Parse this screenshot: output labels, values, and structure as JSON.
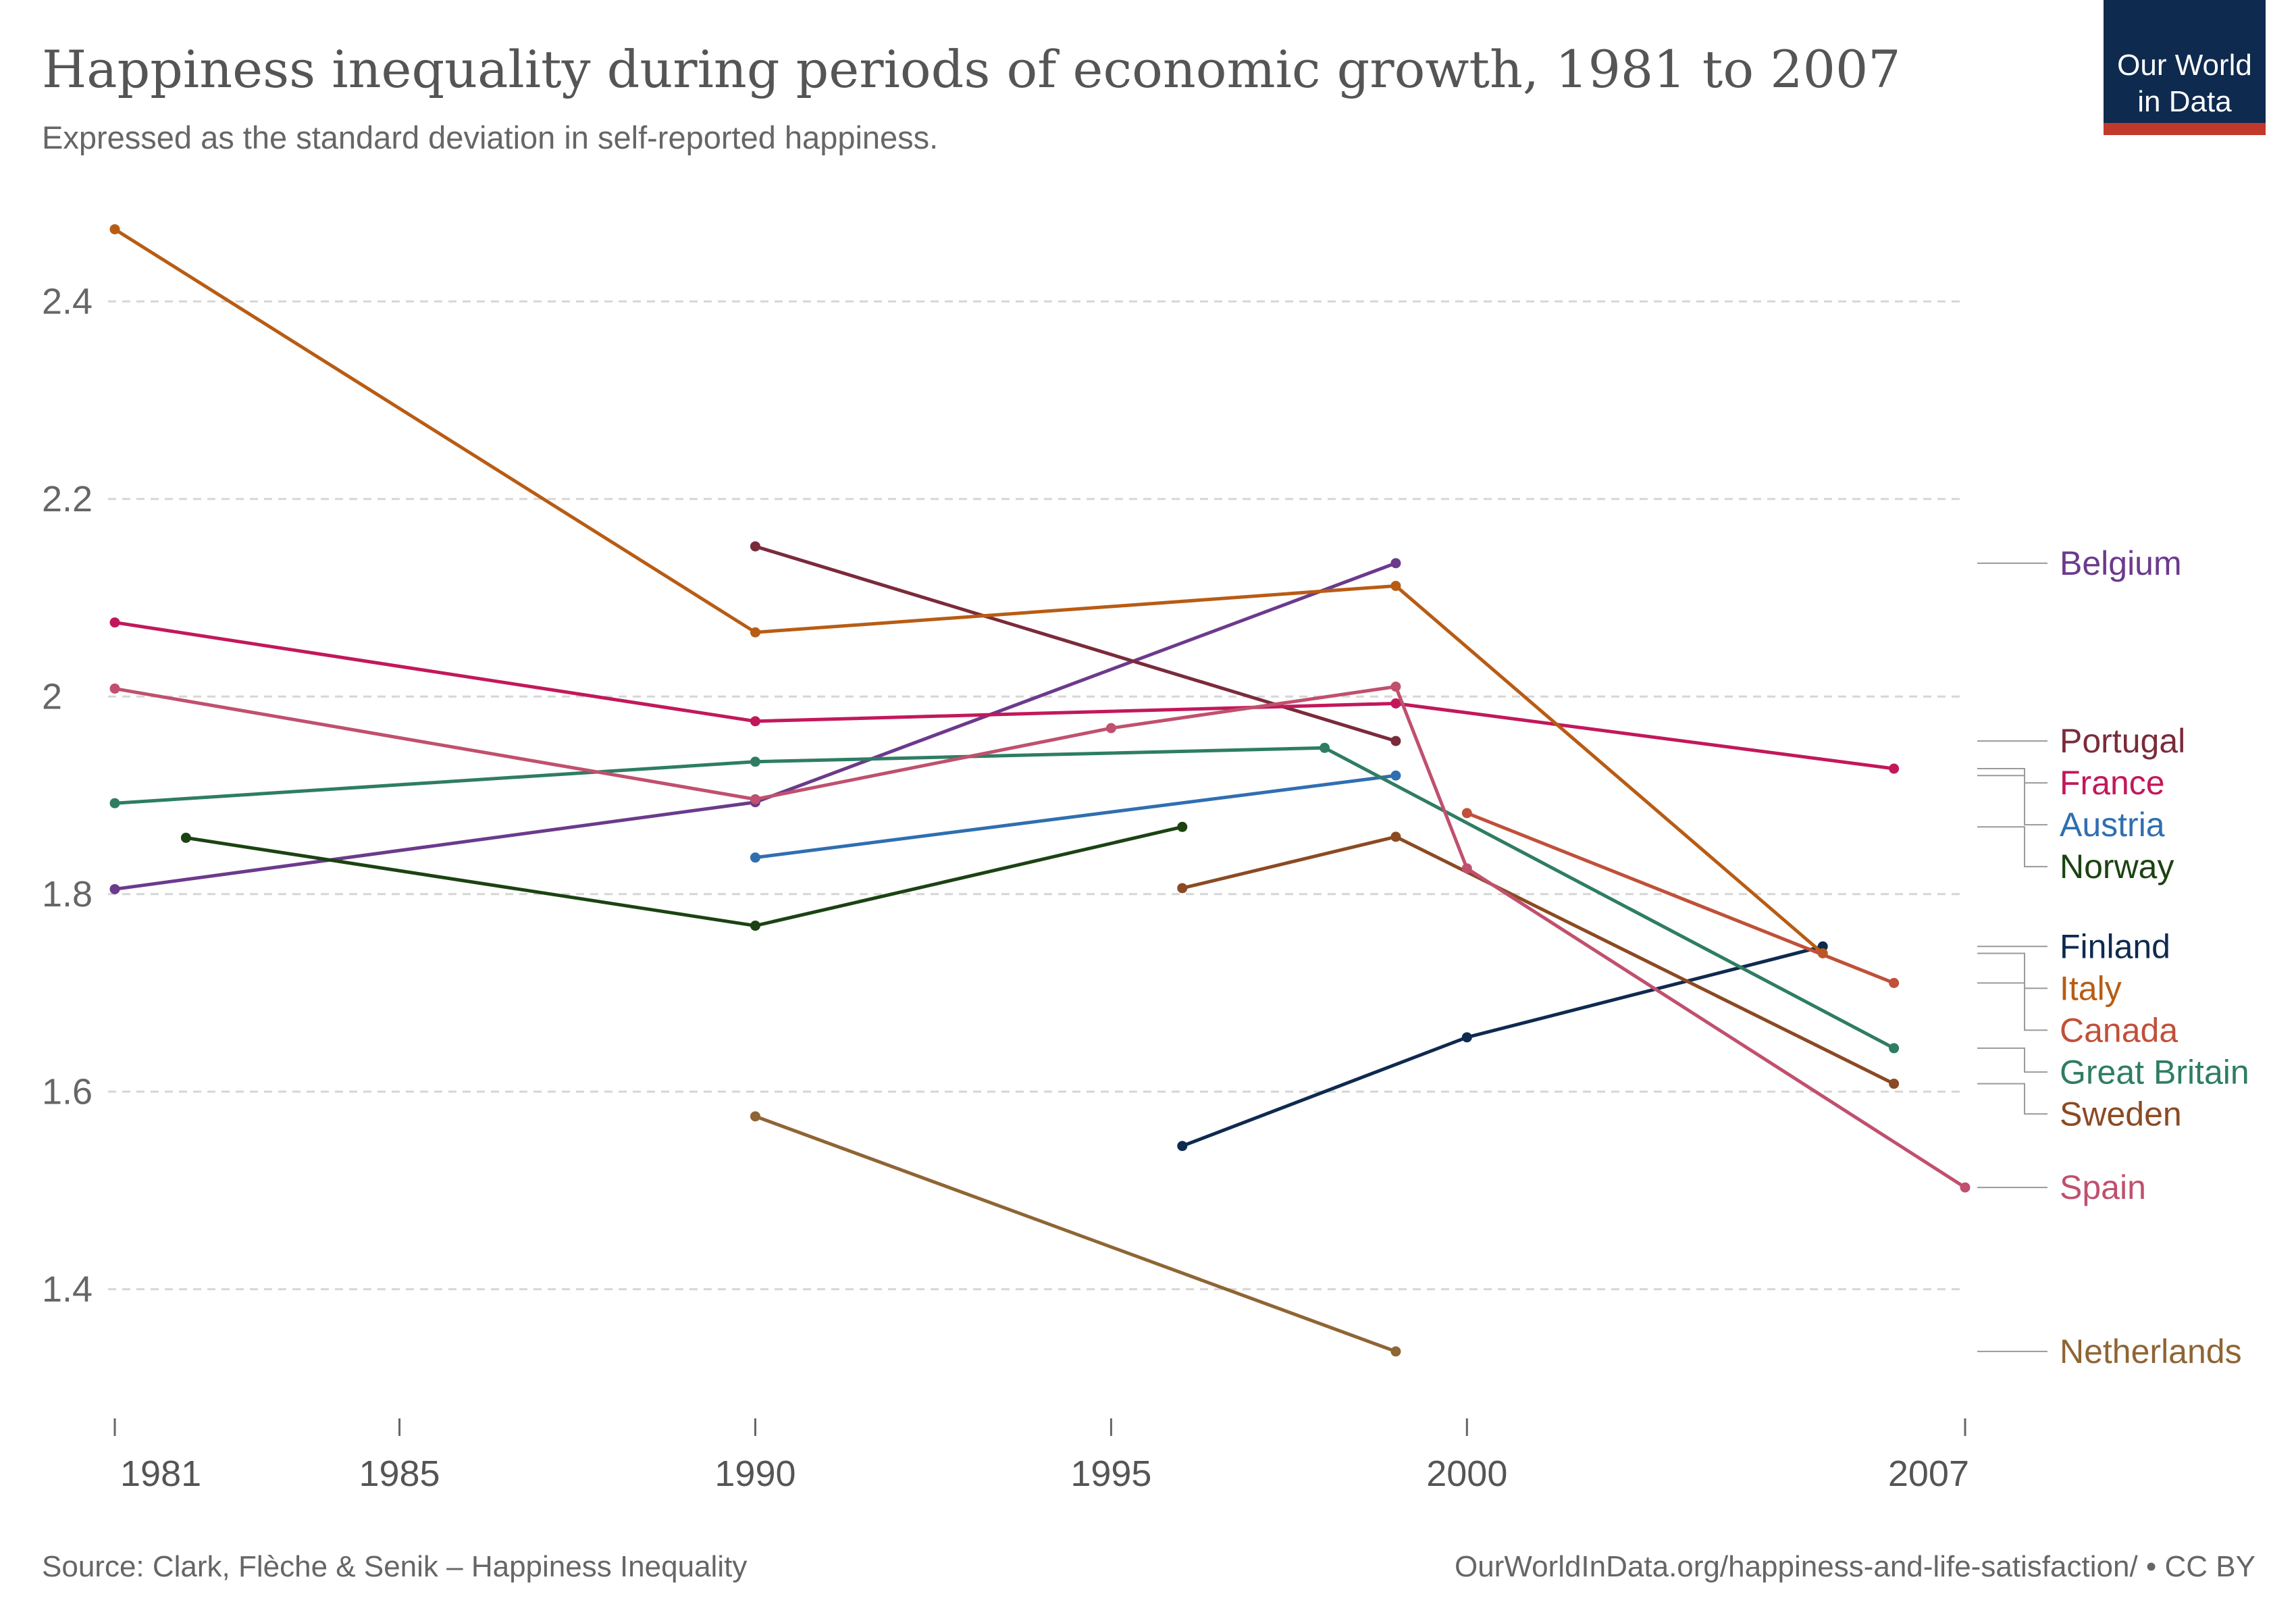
{
  "header": {
    "title": "Happiness inequality during periods of economic growth, 1981 to 2007",
    "subtitle": "Expressed as the standard deviation in self-reported happiness."
  },
  "logo": {
    "line1": "Our World",
    "line2": "in Data",
    "bg_color": "#0e2a4f",
    "accent_color": "#c0392b"
  },
  "footer": {
    "source": "Source: Clark, Flèche & Senik – Happiness Inequality",
    "url": "OurWorldInData.org/happiness-and-life-satisfaction/ • CC BY"
  },
  "chart_data": {
    "type": "line",
    "title": "Happiness inequality during periods of economic growth, 1981 to 2007",
    "xlabel": "",
    "ylabel": "",
    "x_ticks": [
      1981,
      1985,
      1990,
      1995,
      2000,
      2007
    ],
    "y_ticks": [
      "1.4",
      "1.6",
      "1.8",
      "2",
      "2.2",
      "2.4"
    ],
    "xlim": [
      1981,
      2007
    ],
    "ylim": [
      1.3,
      2.5
    ],
    "grid": "horizontal dashed",
    "legend": "right, labels at line ends",
    "series": [
      {
        "name": "Belgium",
        "color": "#6b3a8c",
        "points": [
          [
            1981,
            1.805
          ],
          [
            1990,
            1.893
          ],
          [
            1999,
            2.135
          ]
        ]
      },
      {
        "name": "Portugal",
        "color": "#7a2b3a",
        "points": [
          [
            1990,
            2.152
          ],
          [
            1999,
            1.955
          ]
        ]
      },
      {
        "name": "France",
        "color": "#c2185b",
        "points": [
          [
            1981,
            2.075
          ],
          [
            1990,
            1.975
          ],
          [
            1999,
            1.993
          ],
          [
            2006,
            1.927
          ]
        ]
      },
      {
        "name": "Austria",
        "color": "#2f6fb0",
        "points": [
          [
            1990,
            1.837
          ],
          [
            1999,
            1.92
          ]
        ]
      },
      {
        "name": "Norway",
        "color": "#1b4312",
        "points": [
          [
            1982,
            1.857
          ],
          [
            1990,
            1.768
          ],
          [
            1996,
            1.868
          ]
        ]
      },
      {
        "name": "Finland",
        "color": "#0e2a4f",
        "points": [
          [
            1996,
            1.545
          ],
          [
            2000,
            1.655
          ],
          [
            2005,
            1.747
          ]
        ]
      },
      {
        "name": "Italy",
        "color": "#b85c14",
        "points": [
          [
            1981,
            2.473
          ],
          [
            1990,
            2.065
          ],
          [
            1999,
            2.112
          ],
          [
            2005,
            1.74
          ]
        ]
      },
      {
        "name": "Canada",
        "color": "#c0503a",
        "points": [
          [
            2000,
            1.882
          ],
          [
            2006,
            1.71
          ]
        ]
      },
      {
        "name": "Great Britain",
        "color": "#2e7d63",
        "points": [
          [
            1981,
            1.892
          ],
          [
            1990,
            1.934
          ],
          [
            1998,
            1.948
          ],
          [
            2006,
            1.644
          ]
        ]
      },
      {
        "name": "Sweden",
        "color": "#8b4a23",
        "points": [
          [
            1996,
            1.806
          ],
          [
            1999,
            1.858
          ],
          [
            2006,
            1.608
          ]
        ]
      },
      {
        "name": "Spain",
        "color": "#c0506e",
        "points": [
          [
            1981,
            2.008
          ],
          [
            1990,
            1.896
          ],
          [
            1995,
            1.968
          ],
          [
            1999,
            2.01
          ],
          [
            2000,
            1.826
          ],
          [
            2007,
            1.503
          ]
        ]
      },
      {
        "name": "Netherlands",
        "color": "#8f6534",
        "points": [
          [
            1990,
            1.575
          ],
          [
            1999,
            1.337
          ]
        ]
      }
    ]
  }
}
